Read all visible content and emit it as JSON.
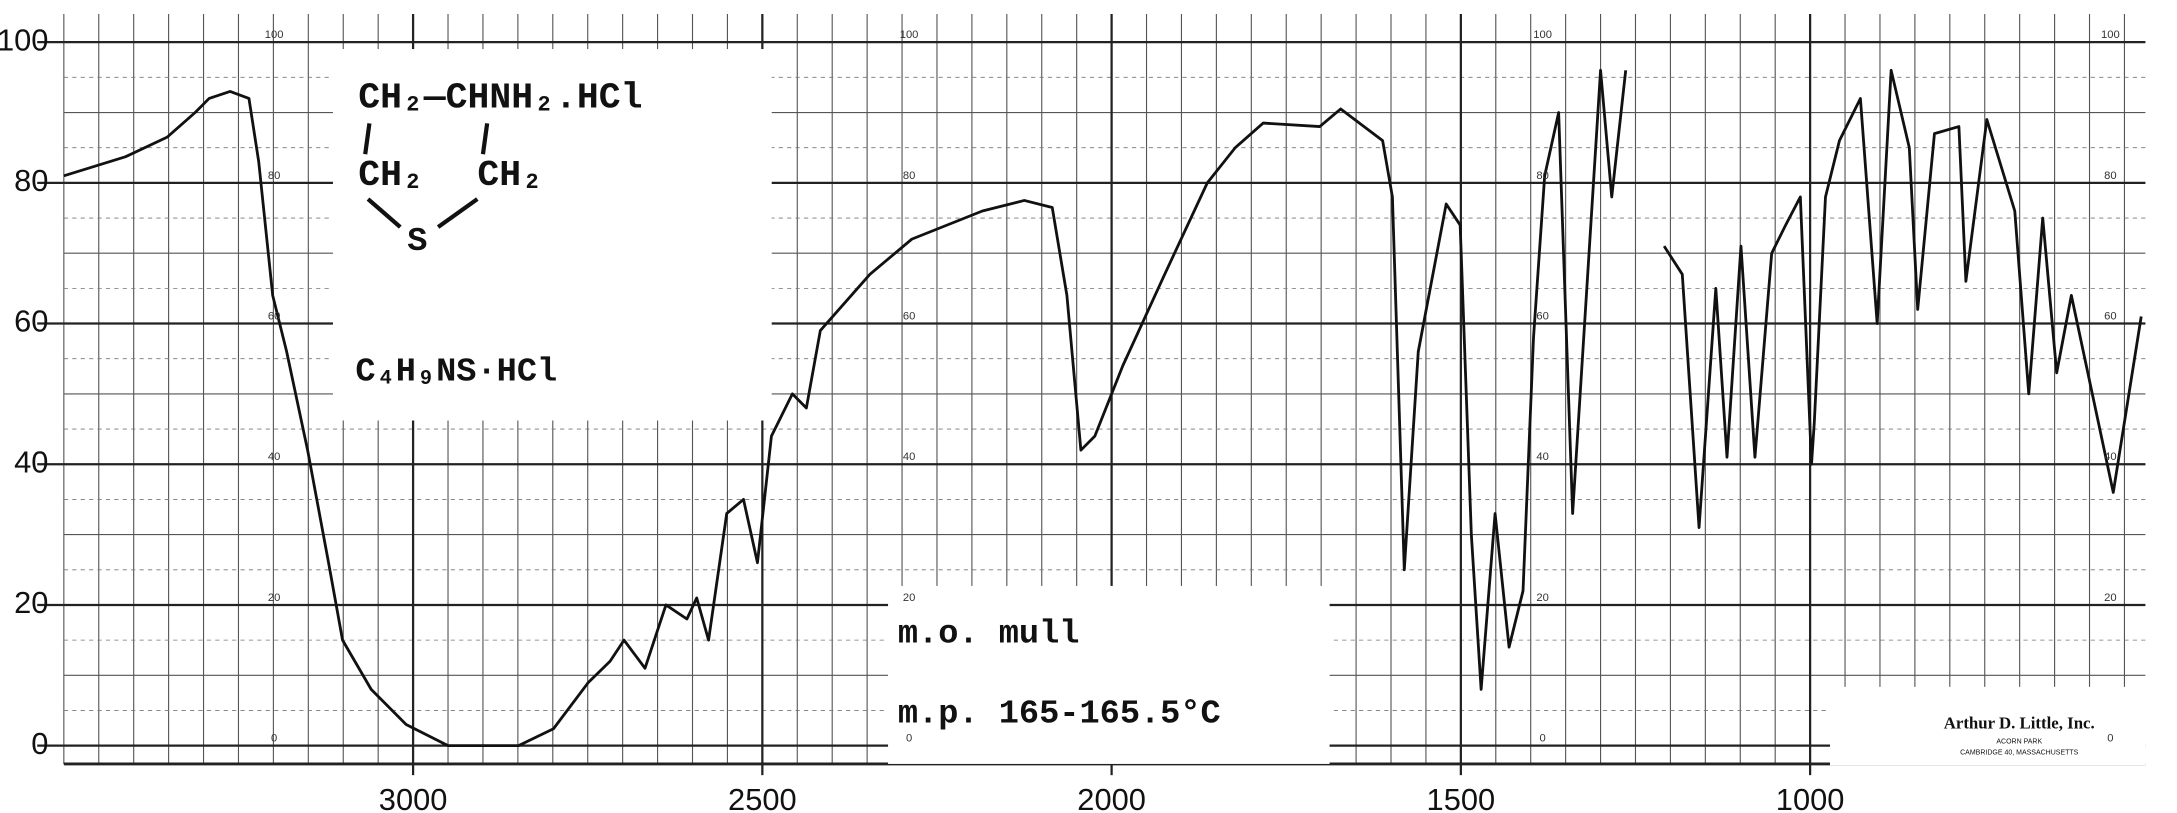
{
  "chart_data": {
    "type": "line",
    "x": [
      3500,
      3412,
      3352,
      3312,
      3292,
      3262,
      3235,
      3221,
      3201,
      3181,
      3151,
      3121,
      3101,
      3060,
      3010,
      2950,
      2849,
      2799,
      2749,
      2718,
      2698,
      2668,
      2638,
      2608,
      2594,
      2577,
      2551,
      2527,
      2507,
      2487,
      2457,
      2437,
      2417,
      2346,
      2286,
      2185,
      2125,
      2085,
      2064,
      2044,
      2024,
      1984,
      1924,
      1863,
      1823,
      1783,
      1702,
      1672,
      1612,
      1598,
      1581,
      1561,
      1521,
      1501,
      1485,
      1471,
      1451,
      1431,
      1411,
      1396,
      1380,
      1360,
      1340,
      1300,
      1284,
      1264,
      1240,
      1209,
      1183,
      1159,
      1135,
      1119,
      1099,
      1079,
      1055,
      1035,
      1014,
      998,
      994,
      978,
      958,
      928,
      904,
      884,
      858,
      846,
      822,
      787,
      777,
      747,
      707,
      687,
      667,
      647,
      626,
      566,
      526
    ],
    "series": [
      {
        "color": "#111111",
        "values": [
          81,
          83.7,
          86.5,
          90,
          92,
          93,
          92,
          83,
          64,
          56,
          42,
          26,
          15,
          8,
          3,
          0,
          0,
          2.4,
          9,
          12,
          15,
          11,
          20,
          18,
          21,
          15,
          33,
          35,
          26,
          44,
          50,
          48,
          59,
          67,
          72,
          76,
          77.5,
          76.5,
          64,
          42,
          44,
          54,
          67,
          80,
          85,
          88.5,
          88,
          90.5,
          86,
          78,
          25,
          56,
          77,
          74,
          30,
          8,
          33,
          14,
          22,
          58,
          81,
          90,
          33,
          96,
          78,
          96,
          null,
          71,
          67,
          31,
          65,
          41,
          71,
          41,
          70,
          74,
          78,
          40,
          46,
          78,
          86,
          92,
          60,
          96,
          85,
          62,
          87,
          88,
          66,
          89,
          76,
          50,
          75,
          53,
          64,
          36,
          61
        ]
      }
    ],
    "xlim": [
      3500,
      520
    ],
    "ylim": [
      -2.6,
      104
    ],
    "xticks": [
      3000,
      2500,
      2000,
      1500,
      1000
    ],
    "yticks": [
      0,
      20,
      40,
      60,
      80,
      100
    ],
    "grid": true,
    "x_minor_step": 50,
    "y_minor_step": 10,
    "paper_scale": [
      100,
      80,
      60,
      40,
      20,
      0
    ],
    "annotations": {
      "formula_top": "CH₂—CHNH₂.HCl",
      "formula_left": "CH₂",
      "formula_right": "CH₂",
      "formula_s": "S",
      "molecular_formula": "C₄H₉NS·HCl",
      "sample": "m.o. mull",
      "melting_point": "m.p. 165-165.5°C",
      "company": "Arthur D. Little, Inc.",
      "company_site": "ACORN PARK",
      "company_address": "CAMBRIDGE 40, MASSACHUSETTS"
    }
  }
}
